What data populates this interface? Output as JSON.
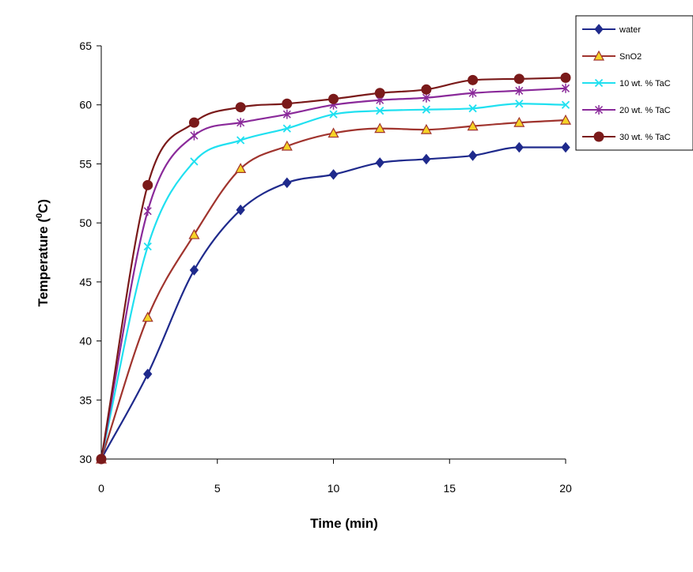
{
  "chart_data": {
    "type": "line",
    "smooth": true,
    "x": [
      0,
      2,
      4,
      6,
      8,
      10,
      12,
      14,
      16,
      18,
      20
    ],
    "xlabel": "Time (min)",
    "ylabel_parts": {
      "before": "Temperature (",
      "sup": "0",
      "after": "C)"
    },
    "xlim": [
      0,
      20
    ],
    "ylim": [
      30,
      65
    ],
    "xticks": [
      0,
      5,
      10,
      15,
      20
    ],
    "yticks": [
      30,
      35,
      40,
      45,
      50,
      55,
      60,
      65
    ],
    "grid": false,
    "legend_position": "top-right",
    "series": [
      {
        "name": "water",
        "color": "#1f2a8c",
        "marker": "diamond",
        "values": [
          30,
          37.2,
          46,
          51.1,
          53.4,
          54.1,
          55.1,
          55.4,
          55.7,
          56.4,
          56.4
        ]
      },
      {
        "name": "SnO2",
        "color": "#a0342e",
        "marker": "triangle",
        "marker_fill": "#f5d327",
        "values": [
          30,
          42,
          49,
          54.6,
          56.5,
          57.6,
          58,
          57.9,
          58.2,
          58.5,
          58.7
        ]
      },
      {
        "name": "10 wt. % TaC",
        "color": "#20e0f0",
        "marker": "x",
        "values": [
          30,
          48,
          55.2,
          57,
          58,
          59.2,
          59.5,
          59.6,
          59.7,
          60.1,
          60
        ]
      },
      {
        "name": "20 wt. % TaC",
        "color": "#8a2a9a",
        "marker": "asterisk",
        "values": [
          30,
          51,
          57.4,
          58.5,
          59.2,
          60,
          60.4,
          60.6,
          61,
          61.2,
          61.4
        ]
      },
      {
        "name": "30 wt. % TaC",
        "color": "#7a1a1a",
        "marker": "circle",
        "values": [
          30,
          53.2,
          58.5,
          59.8,
          60.1,
          60.5,
          61,
          61.3,
          62.1,
          62.2,
          62.3
        ]
      }
    ]
  }
}
